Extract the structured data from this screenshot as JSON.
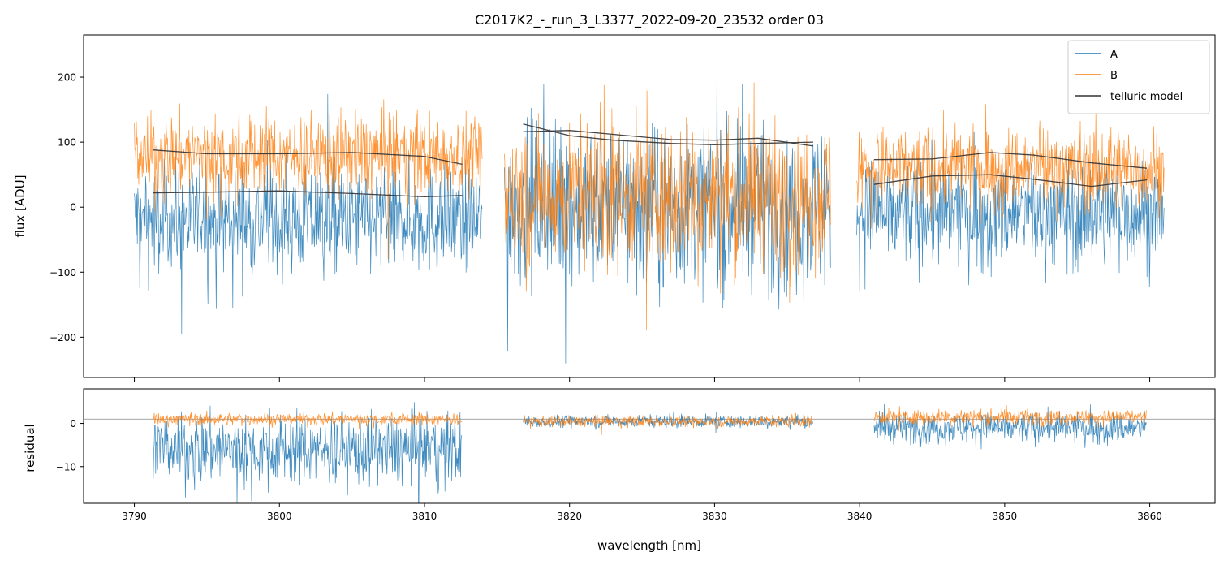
{
  "chart_data": {
    "type": "line",
    "title": "C2017K2_-_run_3_L3377_2022-09-20_23532  order 03",
    "xlabel": "wavelength [nm]",
    "xlim": [
      3786.5,
      3864.5
    ],
    "x_ticks": [
      3790,
      3800,
      3810,
      3820,
      3830,
      3840,
      3850,
      3860
    ],
    "x_tick_labels": [
      "3790",
      "3800",
      "3810",
      "3820",
      "3830",
      "3840",
      "3850",
      "3860"
    ],
    "legend": {
      "placement": "top-right",
      "entries": [
        {
          "label": "A",
          "color": "#1f77b4"
        },
        {
          "label": "B",
          "color": "#ff7f0e"
        },
        {
          "label": "telluric model",
          "color": "#333333"
        }
      ]
    },
    "top_panel": {
      "ylabel": "flux [ADU]",
      "ylim": [
        -262,
        265
      ],
      "y_ticks": [
        -200,
        -100,
        0,
        100,
        200
      ],
      "y_tick_labels": [
        "−200",
        "−100",
        "0",
        "100",
        "200"
      ],
      "series": [
        {
          "name": "A",
          "color": "#1f77b4",
          "segments": [
            {
              "x_range": [
                3790.0,
                3814.0
              ],
              "center": -20,
              "spread": 140
            },
            {
              "x_range": [
                3815.5,
                3838.0
              ],
              "center": 0,
              "spread": 210
            },
            {
              "x_range": [
                3839.8,
                3861.0
              ],
              "center": -10,
              "spread": 140
            }
          ]
        },
        {
          "name": "B",
          "color": "#ff7f0e",
          "segments": [
            {
              "x_range": [
                3790.0,
                3814.0
              ],
              "center": 80,
              "spread": 110
            },
            {
              "x_range": [
                3815.5,
                3838.0
              ],
              "center": 20,
              "spread": 190
            },
            {
              "x_range": [
                3839.8,
                3861.0
              ],
              "center": 60,
              "spread": 110
            }
          ]
        }
      ],
      "telluric_model": [
        {
          "x": [
            3791.3,
            3795,
            3800,
            3805,
            3810,
            3812.6
          ],
          "y": [
            88,
            82,
            82,
            84,
            78,
            66
          ]
        },
        {
          "x": [
            3791.3,
            3795,
            3800,
            3805,
            3810,
            3812.6
          ],
          "y": [
            22,
            23,
            25,
            21,
            16,
            18
          ]
        },
        {
          "x": [
            3816.8,
            3820,
            3823,
            3827,
            3830,
            3833,
            3836.8
          ],
          "y": [
            128,
            110,
            103,
            98,
            96,
            98,
            100
          ]
        },
        {
          "x": [
            3816.8,
            3820,
            3823,
            3827,
            3830,
            3833,
            3836.8
          ],
          "y": [
            116,
            118,
            112,
            104,
            103,
            106,
            94
          ]
        },
        {
          "x": [
            3841.0,
            3845,
            3849,
            3852,
            3856,
            3859.8
          ],
          "y": [
            73,
            74,
            84,
            80,
            68,
            60
          ]
        },
        {
          "x": [
            3841.0,
            3845,
            3849,
            3852,
            3856,
            3859.8
          ],
          "y": [
            35,
            48,
            50,
            43,
            32,
            42
          ]
        }
      ]
    },
    "bottom_panel": {
      "ylabel": "residual",
      "ylim": [
        -18.5,
        8
      ],
      "y_ticks": [
        -10,
        0
      ],
      "y_tick_labels": [
        "−10",
        "0"
      ],
      "reference_line": 1,
      "series": [
        {
          "name": "A",
          "color": "#1f77b4",
          "segments": [
            {
              "x_range": [
                3791.3,
                3812.6
              ],
              "center": -6,
              "spread": 14
            },
            {
              "x_range": [
                3816.8,
                3836.8
              ],
              "center": 0.5,
              "spread": 2.5
            },
            {
              "x_range": [
                3841.0,
                3859.8
              ],
              "center": -1,
              "spread": 6
            }
          ]
        },
        {
          "name": "B",
          "color": "#ff7f0e",
          "segments": [
            {
              "x_range": [
                3791.3,
                3812.6
              ],
              "center": 1,
              "spread": 2.5
            },
            {
              "x_range": [
                3816.8,
                3836.8
              ],
              "center": 0.5,
              "spread": 2.2
            },
            {
              "x_range": [
                3841.0,
                3859.8
              ],
              "center": 1.5,
              "spread": 3
            }
          ]
        }
      ]
    }
  }
}
